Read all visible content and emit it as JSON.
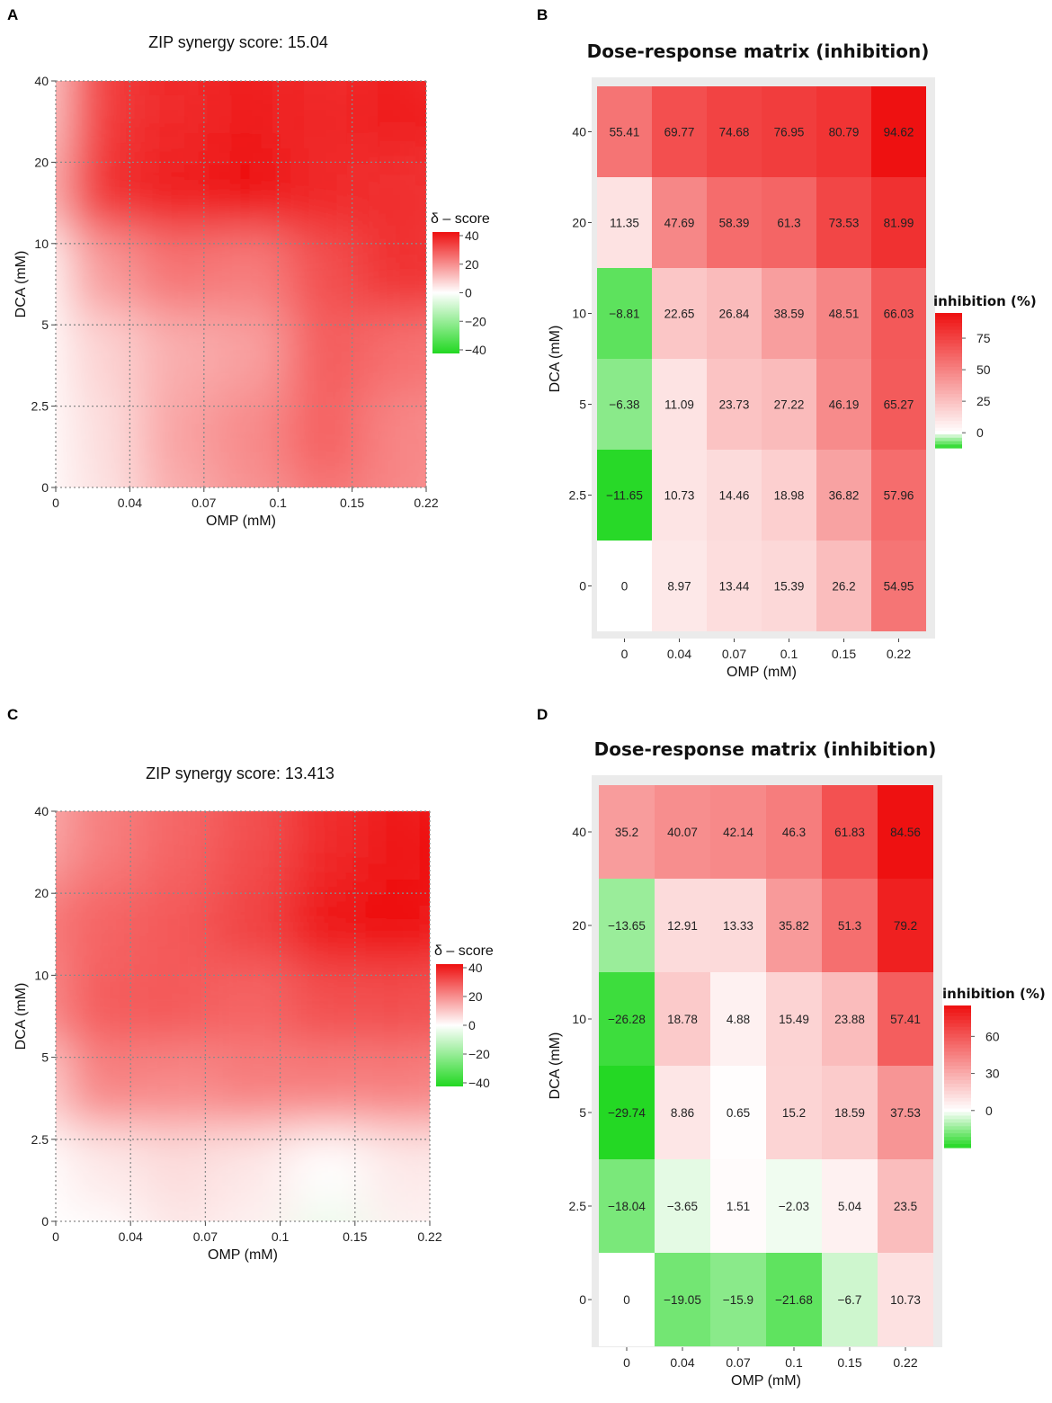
{
  "colors": {
    "high": "#ee1010",
    "mid": "#ffffff",
    "low": "#22d822",
    "panel_bg": "#ebebeb"
  },
  "chart_data": [
    {
      "id": "A",
      "type": "heatmap",
      "panel_label": "A",
      "title": "ZIP synergy score: 15.04",
      "xlabel": "OMP (mM)",
      "ylabel": "DCA (mM)",
      "x_ticks": [
        "0",
        "0.04",
        "0.07",
        "0.1",
        "0.15",
        "0.22"
      ],
      "y_ticks": [
        "0",
        "2.5",
        "5",
        "10",
        "20",
        "40"
      ],
      "legend_title": "δ – score",
      "legend_ticks": [
        "40",
        "20",
        "0",
        "−20",
        "−40"
      ],
      "legend_range": [
        -40,
        40
      ],
      "delta_grid": [
        [
          0,
          5,
          14,
          18,
          23,
          20
        ],
        [
          0,
          6,
          16,
          20,
          27,
          20
        ],
        [
          0,
          8,
          14,
          16,
          28,
          24
        ],
        [
          0,
          18,
          24,
          22,
          30,
          35
        ],
        [
          12,
          36,
          38,
          40,
          36,
          35
        ],
        [
          8,
          34,
          36,
          38,
          36,
          38
        ]
      ]
    },
    {
      "id": "B",
      "type": "heatmap",
      "panel_label": "B",
      "title": "Dose-response matrix (inhibition)",
      "xlabel": "OMP (mM)",
      "ylabel": "DCA (mM)",
      "x_ticks": [
        "0",
        "0.04",
        "0.07",
        "0.1",
        "0.15",
        "0.22"
      ],
      "y_ticks": [
        "0",
        "2.5",
        "5",
        "10",
        "20",
        "40"
      ],
      "legend_title": "inhibition (%)",
      "legend_ticks": [
        "75",
        "50",
        "25",
        "0"
      ],
      "legend_range": [
        -12,
        95
      ],
      "values": [
        [
          0,
          8.97,
          13.44,
          15.39,
          26.2,
          54.95
        ],
        [
          -11.65,
          10.73,
          14.46,
          18.98,
          36.82,
          57.96
        ],
        [
          -6.38,
          11.09,
          23.73,
          27.22,
          46.19,
          65.27
        ],
        [
          -8.81,
          22.65,
          26.84,
          38.59,
          48.51,
          66.03
        ],
        [
          11.35,
          47.69,
          58.39,
          61.3,
          73.53,
          81.99
        ],
        [
          55.41,
          69.77,
          74.68,
          76.95,
          80.79,
          94.62
        ]
      ],
      "labels": [
        [
          "0",
          "8.97",
          "13.44",
          "15.39",
          "26.2",
          "54.95"
        ],
        [
          "−11.65",
          "10.73",
          "14.46",
          "18.98",
          "36.82",
          "57.96"
        ],
        [
          "−6.38",
          "11.09",
          "23.73",
          "27.22",
          "46.19",
          "65.27"
        ],
        [
          "−8.81",
          "22.65",
          "26.84",
          "38.59",
          "48.51",
          "66.03"
        ],
        [
          "11.35",
          "47.69",
          "58.39",
          "61.3",
          "73.53",
          "81.99"
        ],
        [
          "55.41",
          "69.77",
          "74.68",
          "76.95",
          "80.79",
          "94.62"
        ]
      ]
    },
    {
      "id": "C",
      "type": "heatmap",
      "panel_label": "C",
      "title": "ZIP synergy score: 13.413",
      "xlabel": "OMP (mM)",
      "ylabel": "DCA (mM)",
      "x_ticks": [
        "0",
        "0.04",
        "0.07",
        "0.1",
        "0.15",
        "0.22"
      ],
      "y_ticks": [
        "0",
        "2.5",
        "5",
        "10",
        "20",
        "40"
      ],
      "legend_title": "δ – score",
      "legend_ticks": [
        "40",
        "20",
        "0",
        "−20",
        "−40"
      ],
      "legend_range": [
        -40,
        40
      ],
      "delta_grid": [
        [
          0,
          0,
          4,
          2,
          -4,
          2
        ],
        [
          0,
          4,
          6,
          4,
          0,
          4
        ],
        [
          8,
          22,
          20,
          22,
          22,
          22
        ],
        [
          20,
          28,
          28,
          26,
          30,
          30
        ],
        [
          22,
          26,
          28,
          32,
          40,
          40
        ],
        [
          14,
          22,
          26,
          30,
          36,
          42
        ]
      ]
    },
    {
      "id": "D",
      "type": "heatmap",
      "panel_label": "D",
      "title": "Dose-response matrix (inhibition)",
      "xlabel": "OMP (mM)",
      "ylabel": "DCA (mM)",
      "x_ticks": [
        "0",
        "0.04",
        "0.07",
        "0.1",
        "0.15",
        "0.22"
      ],
      "y_ticks": [
        "0",
        "2.5",
        "5",
        "10",
        "20",
        "40"
      ],
      "legend_title": "inhibition (%)",
      "legend_ticks": [
        "60",
        "30",
        "0"
      ],
      "legend_range": [
        -30,
        85
      ],
      "values": [
        [
          0,
          -19.05,
          -15.9,
          -21.68,
          -6.7,
          10.73
        ],
        [
          -18.04,
          -3.65,
          1.51,
          -2.03,
          5.04,
          23.5
        ],
        [
          -29.74,
          8.86,
          0.65,
          15.2,
          18.59,
          37.53
        ],
        [
          -26.28,
          18.78,
          4.88,
          15.49,
          23.88,
          57.41
        ],
        [
          -13.65,
          12.91,
          13.33,
          35.82,
          51.3,
          79.2
        ],
        [
          35.2,
          40.07,
          42.14,
          46.3,
          61.83,
          84.56
        ]
      ],
      "labels": [
        [
          "0",
          "−19.05",
          "−15.9",
          "−21.68",
          "−6.7",
          "10.73"
        ],
        [
          "−18.04",
          "−3.65",
          "1.51",
          "−2.03",
          "5.04",
          "23.5"
        ],
        [
          "−29.74",
          "8.86",
          "0.65",
          "15.2",
          "18.59",
          "37.53"
        ],
        [
          "−26.28",
          "18.78",
          "4.88",
          "15.49",
          "23.88",
          "57.41"
        ],
        [
          "−13.65",
          "12.91",
          "13.33",
          "35.82",
          "51.3",
          "79.2"
        ],
        [
          "35.2",
          "40.07",
          "42.14",
          "46.3",
          "61.83",
          "84.56"
        ]
      ]
    }
  ]
}
